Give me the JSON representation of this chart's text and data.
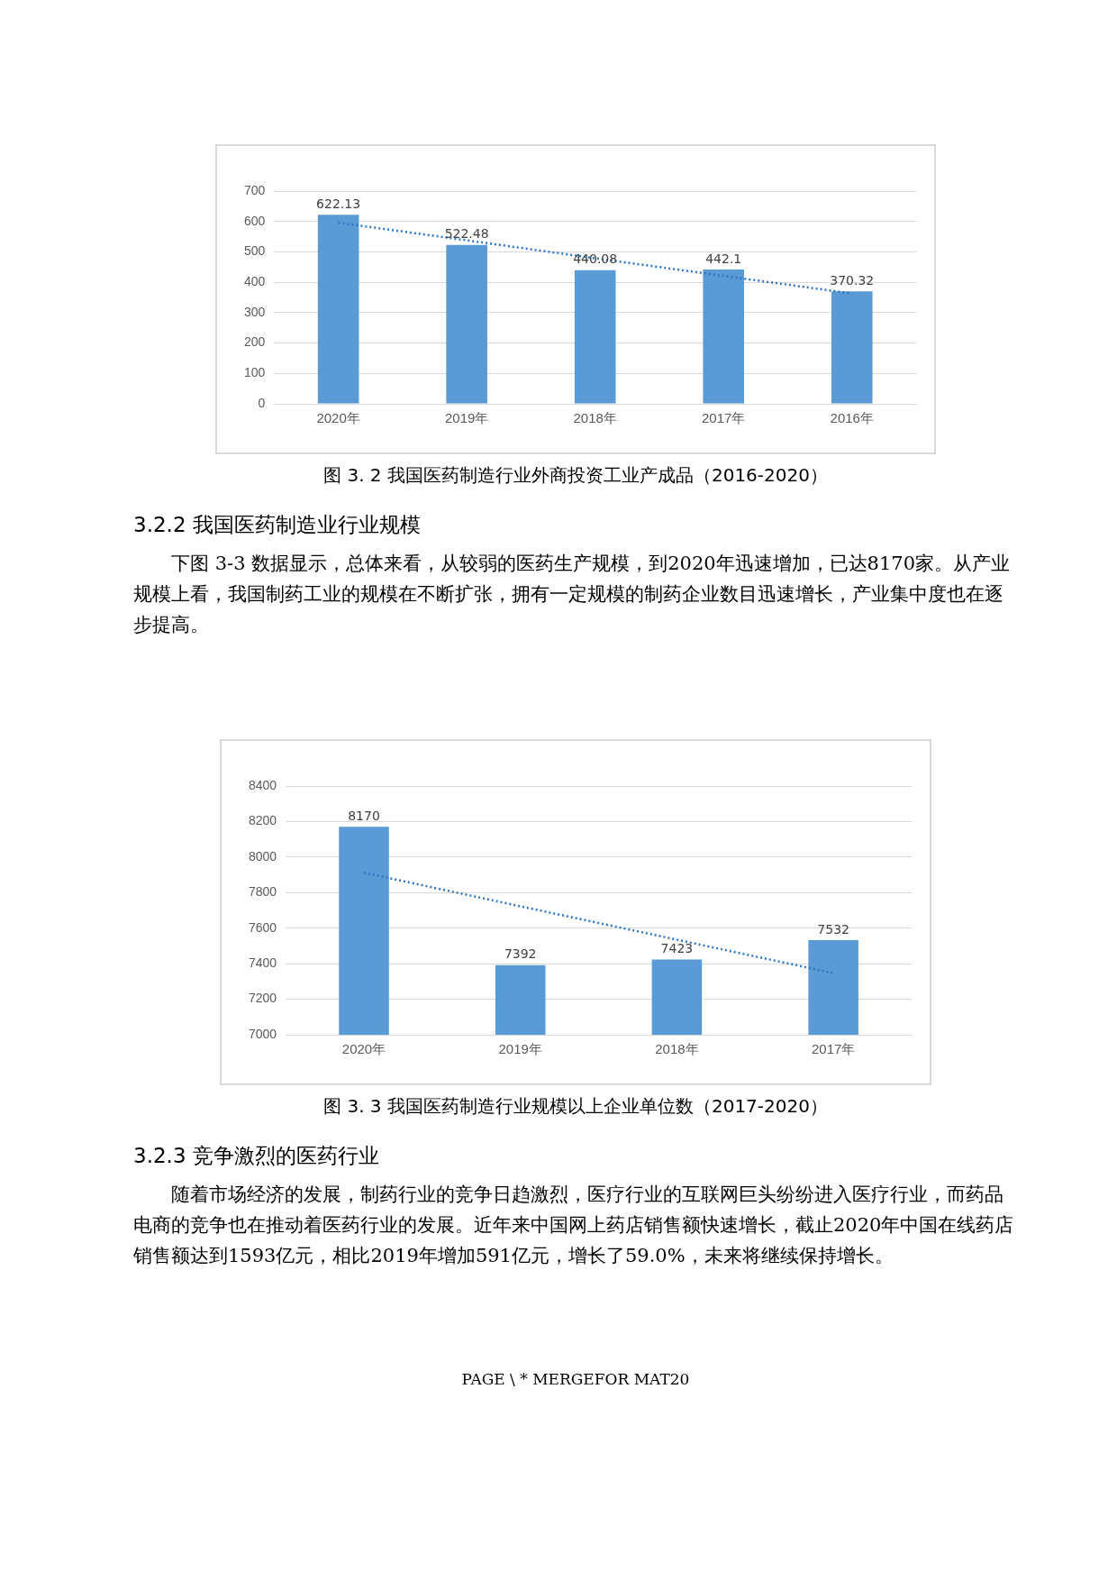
{
  "chart_data": [
    {
      "type": "bar",
      "title": "图 3. 2  我国医药制造行业外商投资工业产成品（2016-2020）",
      "categories": [
        "2020年",
        "2019年",
        "2018年",
        "2017年",
        "2016年"
      ],
      "series": [
        {
          "color": "#5b9bd5",
          "values": [
            622.13,
            522.48,
            440.08,
            442.1,
            370.32
          ],
          "value_labels": [
            "622.13",
            "522.48",
            "440.08",
            "442.1",
            "370.32"
          ]
        },
        {
          "type": "line",
          "color": "#2e75c6",
          "values": [
            596,
            538,
            479,
            421,
            363
          ]
        }
      ],
      "ylim": [
        0,
        700
      ],
      "yticks": [
        0,
        100,
        200,
        300,
        400,
        500,
        600,
        700
      ],
      "grid": "y",
      "line_style": "dotted",
      "annotations": [
        "3.2.2  我国医药制造业行业规模",
        "下图 3-3 数据显示，总体来看，从较弱的医药生产规模，到2020年迅速增加，已达8170家。从产业规模上看，我国制药工业的规模在不断扩张，拥有一定规模的制药企业数目迅速增长，产业集中度也在逐步提高。"
      ]
    },
    {
      "type": "bar",
      "title": "图 3. 3  我国医药制造行业规模以上企业单位数（2017-2020）",
      "categories": [
        "2020年",
        "2019年",
        "2018年",
        "2017年"
      ],
      "series": [
        {
          "color": "#5b9bd5",
          "values": [
            8170,
            7392,
            7423,
            7532
          ],
          "value_labels": [
            "8170",
            "7392",
            "7423",
            "7532"
          ]
        },
        {
          "type": "line",
          "color": "#2e75c6",
          "values": [
            7912,
            7723,
            7535,
            7347
          ]
        }
      ],
      "ylim": [
        7000,
        8400
      ],
      "yticks": [
        7000,
        7200,
        7400,
        7600,
        7800,
        8000,
        8200,
        8400
      ],
      "grid": "y",
      "line_style": "dotted",
      "annotations": [
        "3.2.3  竞争激烈的医药行业",
        "随着市场经济的发展，制药行业的竞争日趋激烈，医疗行业的互联网巨头纷纷进入医疗行业，而药品电商的竞争也在推动着医药行业的发展。近年来中国网上药店销售额快速增长，截止2020年中国在线药店销售额达到1593亿元，相比2019年增加591亿元，增长了59.0%，未来将继续保持增长。",
        "PAGE \\ * MERGEFOR MAT20"
      ]
    }
  ]
}
